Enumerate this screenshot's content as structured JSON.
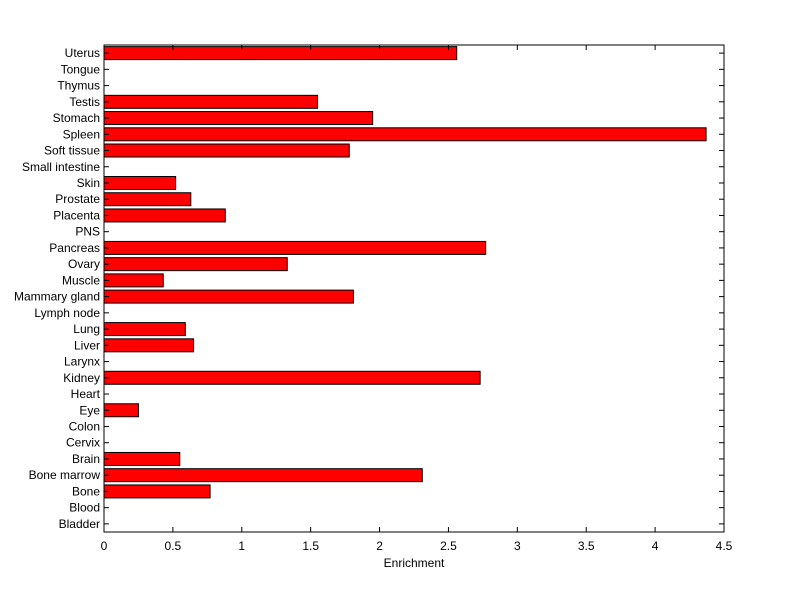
{
  "chart_data": {
    "type": "bar",
    "orientation": "horizontal",
    "categories": [
      "Bladder",
      "Blood",
      "Bone",
      "Bone marrow",
      "Brain",
      "Cervix",
      "Colon",
      "Eye",
      "Heart",
      "Kidney",
      "Larynx",
      "Liver",
      "Lung",
      "Lymph node",
      "Mammary gland",
      "Muscle",
      "Ovary",
      "Pancreas",
      "PNS",
      "Placenta",
      "Prostate",
      "Skin",
      "Small intestine",
      "Soft tissue",
      "Spleen",
      "Stomach",
      "Testis",
      "Thymus",
      "Tongue",
      "Uterus"
    ],
    "values": [
      0,
      0,
      0.77,
      2.31,
      0.55,
      0,
      0,
      0.25,
      0,
      2.73,
      0,
      0.65,
      0.59,
      0,
      1.81,
      0.43,
      1.33,
      2.77,
      0,
      0.88,
      0.63,
      0.52,
      0,
      1.78,
      4.37,
      1.95,
      1.55,
      0,
      0,
      2.56
    ],
    "xlabel": "Enrichment",
    "ylabel": "",
    "title": "",
    "xlim": [
      0,
      4.5
    ],
    "xticks": [
      "0",
      "0.5",
      "1",
      "1.5",
      "2",
      "2.5",
      "3",
      "3.5",
      "4",
      "4.5"
    ],
    "bar_color": "#ff0000",
    "bar_edge_color": "#000000",
    "grid": false
  }
}
